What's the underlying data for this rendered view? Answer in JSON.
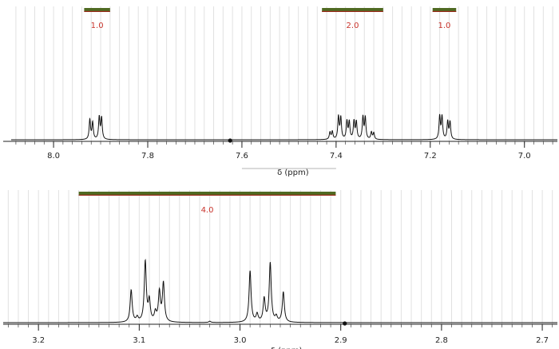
{
  "chart_data": [
    {
      "type": "line",
      "subtype": "nmr-spectrum",
      "title": "",
      "xlabel": "δ (ppm)",
      "xlim": [
        8.09,
        6.93
      ],
      "x_reversed": true,
      "ticks": [
        8.0,
        7.8,
        7.6,
        7.4,
        7.2,
        7.0
      ],
      "tick_labels": [
        "8.0",
        "7.8",
        "7.6",
        "7.4",
        "7.2",
        "7.0"
      ],
      "minor_tick_step": 0.02,
      "gridlines": true,
      "integrals": [
        {
          "label": "1.0",
          "start": 7.935,
          "end": 7.88
        },
        {
          "label": "2.0",
          "start": 7.43,
          "end": 7.3
        },
        {
          "label": "1.0",
          "start": 7.195,
          "end": 7.145
        }
      ],
      "peaks": [
        {
          "x": 7.923,
          "h": 0.67
        },
        {
          "x": 7.917,
          "h": 0.57
        },
        {
          "x": 7.903,
          "h": 0.75
        },
        {
          "x": 7.898,
          "h": 0.72
        },
        {
          "x": 7.413,
          "h": 0.24
        },
        {
          "x": 7.408,
          "h": 0.26
        },
        {
          "x": 7.395,
          "h": 0.76
        },
        {
          "x": 7.39,
          "h": 0.72
        },
        {
          "x": 7.377,
          "h": 0.6
        },
        {
          "x": 7.372,
          "h": 0.58
        },
        {
          "x": 7.362,
          "h": 0.6
        },
        {
          "x": 7.357,
          "h": 0.58
        },
        {
          "x": 7.343,
          "h": 0.74
        },
        {
          "x": 7.338,
          "h": 0.72
        },
        {
          "x": 7.325,
          "h": 0.24
        },
        {
          "x": 7.32,
          "h": 0.22
        },
        {
          "x": 7.18,
          "h": 0.78
        },
        {
          "x": 7.175,
          "h": 0.76
        },
        {
          "x": 7.163,
          "h": 0.6
        },
        {
          "x": 7.158,
          "h": 0.58
        }
      ],
      "marker": {
        "x": 7.625
      }
    },
    {
      "type": "line",
      "subtype": "nmr-spectrum",
      "title": "",
      "xlabel": "δ (ppm)",
      "xlim": [
        3.235,
        2.685
      ],
      "x_reversed": true,
      "ticks": [
        3.2,
        3.1,
        3.0,
        2.9,
        2.8,
        2.7
      ],
      "tick_labels": [
        "3.2",
        "3.1",
        "3.0",
        "2.9",
        "2.8",
        "2.7"
      ],
      "minor_tick_step": 0.01,
      "gridlines": true,
      "integrals": [
        {
          "label": "4.0",
          "start": 3.16,
          "end": 2.905
        }
      ],
      "peaks": [
        {
          "x": 3.108,
          "h": 0.5
        },
        {
          "x": 3.102,
          "h": 0.07
        },
        {
          "x": 3.094,
          "h": 0.94
        },
        {
          "x": 3.09,
          "h": 0.32
        },
        {
          "x": 3.084,
          "h": 0.14
        },
        {
          "x": 3.08,
          "h": 0.46
        },
        {
          "x": 3.076,
          "h": 0.6
        },
        {
          "x": 3.03,
          "h": 0.02
        },
        {
          "x": 2.99,
          "h": 0.8
        },
        {
          "x": 2.983,
          "h": 0.12
        },
        {
          "x": 2.976,
          "h": 0.36
        },
        {
          "x": 2.97,
          "h": 0.92
        },
        {
          "x": 2.964,
          "h": 0.08
        },
        {
          "x": 2.957,
          "h": 0.47
        }
      ],
      "marker": {
        "x": 2.896
      }
    }
  ]
}
